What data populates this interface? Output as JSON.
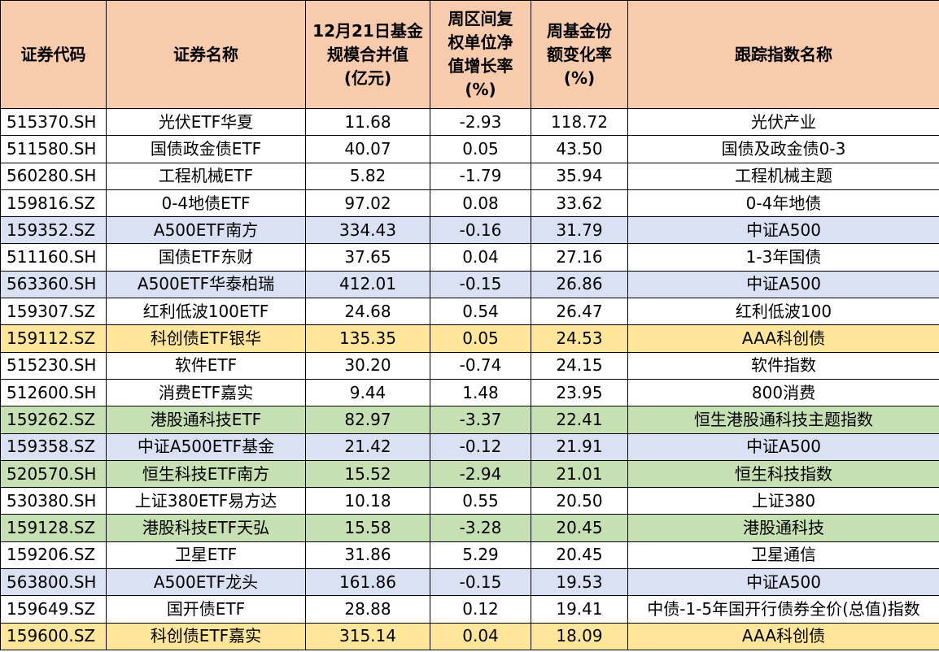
{
  "headers": [
    [
      "证券代码"
    ],
    [
      "证券名称"
    ],
    [
      "12月21日基金",
      "规模合并值",
      "(亿元)"
    ],
    [
      "周区间复",
      "权单位净",
      "值增长率",
      "(%)"
    ],
    [
      "周基金份",
      "额变化率",
      "(%)"
    ],
    [
      "跟踪指数名称"
    ]
  ],
  "row_colors": {
    "white": "#ffffff",
    "blue": "#d9e1f2",
    "yellow": "#ffe699",
    "green": "#c6e0b4",
    "header": "#f8cbad"
  },
  "rows": [
    {
      "code": "515370.SH",
      "name": "光伏ETF华夏",
      "scale": "11.68",
      "nav_growth": "-2.93",
      "share_change": "118.72",
      "index": "光伏产业",
      "color": "white"
    },
    {
      "code": "511580.SH",
      "name": "国债政金债ETF",
      "scale": "40.07",
      "nav_growth": "0.05",
      "share_change": "43.50",
      "index": "国债及政金债0-3",
      "color": "white"
    },
    {
      "code": "560280.SH",
      "name": "工程机械ETF",
      "scale": "5.82",
      "nav_growth": "-1.79",
      "share_change": "35.94",
      "index": "工程机械主题",
      "color": "white"
    },
    {
      "code": "159816.SZ",
      "name": "0-4地债ETF",
      "scale": "97.02",
      "nav_growth": "0.08",
      "share_change": "33.62",
      "index": "0-4年地债",
      "color": "white"
    },
    {
      "code": "159352.SZ",
      "name": "A500ETF南方",
      "scale": "334.43",
      "nav_growth": "-0.16",
      "share_change": "31.79",
      "index": "中证A500",
      "color": "blue"
    },
    {
      "code": "511160.SH",
      "name": "国债ETF东财",
      "scale": "37.65",
      "nav_growth": "0.04",
      "share_change": "27.16",
      "index": "1-3年国债",
      "color": "white"
    },
    {
      "code": "563360.SH",
      "name": "A500ETF华泰柏瑞",
      "scale": "412.01",
      "nav_growth": "-0.15",
      "share_change": "26.86",
      "index": "中证A500",
      "color": "blue"
    },
    {
      "code": "159307.SZ",
      "name": "红利低波100ETF",
      "scale": "24.68",
      "nav_growth": "0.54",
      "share_change": "26.47",
      "index": "红利低波100",
      "color": "white"
    },
    {
      "code": "159112.SZ",
      "name": "科创债ETF银华",
      "scale": "135.35",
      "nav_growth": "0.05",
      "share_change": "24.53",
      "index": "AAA科创债",
      "color": "yellow"
    },
    {
      "code": "515230.SH",
      "name": "软件ETF",
      "scale": "30.20",
      "nav_growth": "-0.74",
      "share_change": "24.15",
      "index": "软件指数",
      "color": "white"
    },
    {
      "code": "512600.SH",
      "name": "消费ETF嘉实",
      "scale": "9.44",
      "nav_growth": "1.48",
      "share_change": "23.95",
      "index": "800消费",
      "color": "white"
    },
    {
      "code": "159262.SZ",
      "name": "港股通科技ETF",
      "scale": "82.97",
      "nav_growth": "-3.37",
      "share_change": "22.41",
      "index": "恒生港股通科技主题指数",
      "color": "green"
    },
    {
      "code": "159358.SZ",
      "name": "中证A500ETF基金",
      "scale": "21.42",
      "nav_growth": "-0.12",
      "share_change": "21.91",
      "index": "中证A500",
      "color": "blue"
    },
    {
      "code": "520570.SH",
      "name": "恒生科技ETF南方",
      "scale": "15.52",
      "nav_growth": "-2.94",
      "share_change": "21.01",
      "index": "恒生科技指数",
      "color": "green"
    },
    {
      "code": "530380.SH",
      "name": "上证380ETF易方达",
      "scale": "10.18",
      "nav_growth": "0.55",
      "share_change": "20.50",
      "index": "上证380",
      "color": "white"
    },
    {
      "code": "159128.SZ",
      "name": "港股科技ETF天弘",
      "scale": "15.58",
      "nav_growth": "-3.28",
      "share_change": "20.45",
      "index": "港股通科技",
      "color": "green"
    },
    {
      "code": "159206.SZ",
      "name": "卫星ETF",
      "scale": "31.86",
      "nav_growth": "5.29",
      "share_change": "20.45",
      "index": "卫星通信",
      "color": "white"
    },
    {
      "code": "563800.SH",
      "name": "A500ETF龙头",
      "scale": "161.86",
      "nav_growth": "-0.15",
      "share_change": "19.53",
      "index": "中证A500",
      "color": "blue"
    },
    {
      "code": "159649.SZ",
      "name": "国开债ETF",
      "scale": "28.88",
      "nav_growth": "0.12",
      "share_change": "19.41",
      "index": "中债-1-5年国开行债券全价(总值)指数",
      "color": "white"
    },
    {
      "code": "159600.SZ",
      "name": "科创债ETF嘉实",
      "scale": "315.14",
      "nav_growth": "0.04",
      "share_change": "18.09",
      "index": "AAA科创债",
      "color": "yellow"
    }
  ]
}
